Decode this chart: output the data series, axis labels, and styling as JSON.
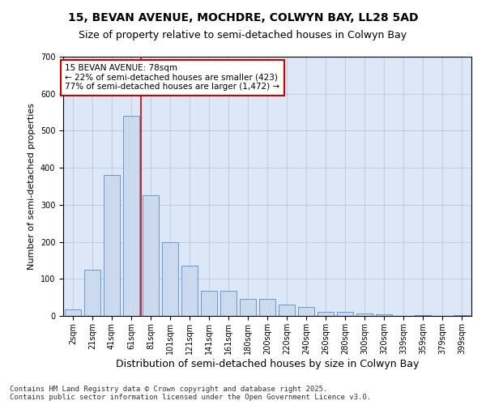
{
  "title_line1": "15, BEVAN AVENUE, MOCHDRE, COLWYN BAY, LL28 5AD",
  "title_line2": "Size of property relative to semi-detached houses in Colwyn Bay",
  "xlabel": "Distribution of semi-detached houses by size in Colwyn Bay",
  "ylabel": "Number of semi-detached properties",
  "categories": [
    "2sqm",
    "21sqm",
    "41sqm",
    "61sqm",
    "81sqm",
    "101sqm",
    "121sqm",
    "141sqm",
    "161sqm",
    "180sqm",
    "200sqm",
    "220sqm",
    "240sqm",
    "260sqm",
    "280sqm",
    "300sqm",
    "320sqm",
    "339sqm",
    "359sqm",
    "379sqm",
    "399sqm"
  ],
  "values": [
    18,
    125,
    380,
    540,
    325,
    200,
    135,
    68,
    68,
    45,
    45,
    30,
    25,
    12,
    10,
    7,
    5,
    1,
    2,
    0,
    3
  ],
  "bar_color": "#ccdaf0",
  "bar_edge_color": "#6699cc",
  "red_line_x": 3.5,
  "annotation_title": "15 BEVAN AVENUE: 78sqm",
  "annotation_line2": "← 22% of semi-detached houses are smaller (423)",
  "annotation_line3": "77% of semi-detached houses are larger (1,472) →",
  "annotation_box_color": "#ffffff",
  "annotation_box_edge": "#cc0000",
  "red_line_color": "#cc0000",
  "grid_color": "#b8c8e0",
  "background_color": "#dce8f8",
  "ylim": [
    0,
    700
  ],
  "yticks": [
    0,
    100,
    200,
    300,
    400,
    500,
    600,
    700
  ],
  "footer_line1": "Contains HM Land Registry data © Crown copyright and database right 2025.",
  "footer_line2": "Contains public sector information licensed under the Open Government Licence v3.0.",
  "title_fontsize": 10,
  "subtitle_fontsize": 9,
  "ylabel_fontsize": 8,
  "xlabel_fontsize": 9,
  "tick_fontsize": 7,
  "annotation_fontsize": 7.5,
  "footer_fontsize": 6.5
}
